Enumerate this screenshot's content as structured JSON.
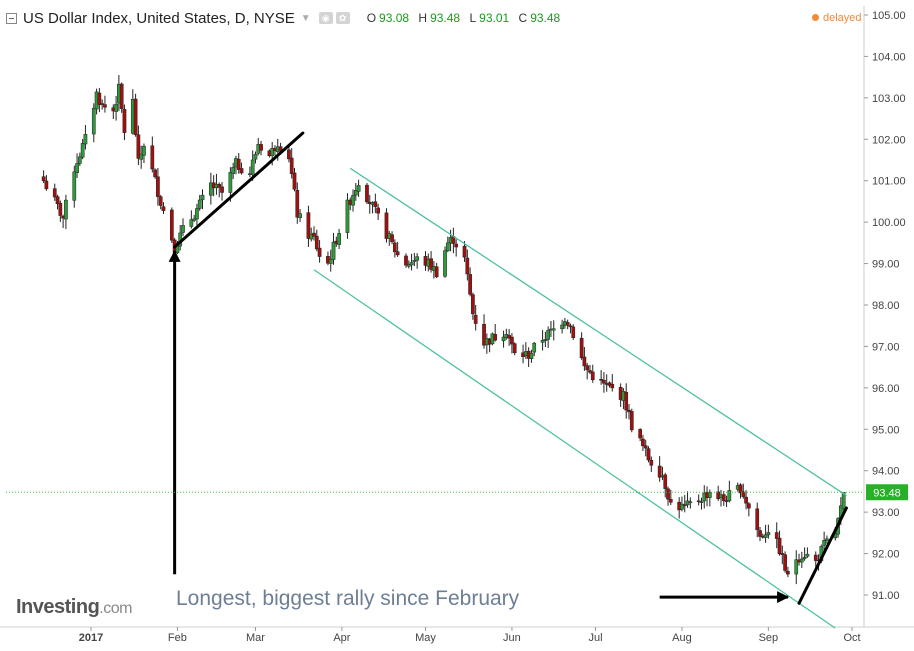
{
  "header": {
    "title": "US Dollar Index, United States, D, NYSE",
    "o_label": "O",
    "o_value": "93.08",
    "h_label": "H",
    "h_value": "93.48",
    "l_label": "L",
    "l_value": "93.01",
    "c_label": "C",
    "c_value": "93.48",
    "delayed": "delayed"
  },
  "logo": {
    "brand": "Investing",
    "suffix": ".com"
  },
  "annotation": "Longest, biggest rally since February",
  "price_marker": "93.48",
  "colors": {
    "up": "#2e9a3a",
    "down": "#a01010",
    "channel": "#4fc0a2",
    "price_line": "#3bbf3b",
    "delayed": "#f08a3a",
    "arrow": "#000000"
  },
  "chart_data": {
    "type": "candlestick",
    "title": "US Dollar Index, United States, D, NYSE",
    "y_ticks": [
      "91.00",
      "92.00",
      "93.00",
      "94.00",
      "95.00",
      "96.00",
      "97.00",
      "98.00",
      "99.00",
      "100.00",
      "101.00",
      "102.00",
      "103.00",
      "104.00",
      "105.00"
    ],
    "ylim": [
      90.2,
      105.3
    ],
    "x_ticks": [
      "2017",
      "Feb",
      "Mar",
      "Apr",
      "May",
      "Jun",
      "Jul",
      "Aug",
      "Sep",
      "Oct"
    ],
    "last_price": 93.48,
    "channel": {
      "upper": [
        [
          "2017-04-04",
          101.3
        ],
        [
          "2017-09-29",
          93.4
        ]
      ],
      "lower": [
        [
          "2017-03-22",
          98.85
        ],
        [
          "2017-09-25",
          90.2
        ]
      ]
    },
    "trendlines": [
      [
        [
          "2017-01-31",
          99.4
        ],
        [
          "2017-03-18",
          102.15
        ]
      ],
      [
        [
          "2017-09-12",
          90.8
        ],
        [
          "2017-09-29",
          93.1
        ]
      ]
    ],
    "arrows": [
      {
        "from": [
          "2017-01-31",
          91.5
        ],
        "to": [
          "2017-01-31",
          99.3
        ]
      },
      {
        "from": [
          "2017-07-24",
          90.95
        ],
        "to": [
          "2017-09-08",
          90.95
        ]
      }
    ],
    "anchors": [
      [
        "2016-12-15",
        101.0
      ],
      [
        "2016-12-19",
        100.5
      ],
      [
        "2016-12-22",
        100.1
      ],
      [
        "2016-12-26",
        101.3
      ],
      [
        "2016-12-30",
        102.0
      ],
      [
        "2017-01-03",
        103.1
      ],
      [
        "2017-01-05",
        102.8
      ],
      [
        "2017-01-09",
        102.7
      ],
      [
        "2017-01-11",
        103.2
      ],
      [
        "2017-01-13",
        102.2
      ],
      [
        "2017-01-16",
        102.9
      ],
      [
        "2017-01-18",
        101.4
      ],
      [
        "2017-01-20",
        101.9
      ],
      [
        "2017-01-24",
        101.0
      ],
      [
        "2017-01-26",
        100.5
      ],
      [
        "2017-01-31",
        99.4
      ],
      [
        "2017-02-03",
        99.8
      ],
      [
        "2017-02-08",
        100.3
      ],
      [
        "2017-02-13",
        100.9
      ],
      [
        "2017-02-17",
        100.7
      ],
      [
        "2017-02-22",
        101.4
      ],
      [
        "2017-02-27",
        101.2
      ],
      [
        "2017-03-02",
        101.9
      ],
      [
        "2017-03-06",
        101.6
      ],
      [
        "2017-03-09",
        101.95
      ],
      [
        "2017-03-13",
        101.6
      ],
      [
        "2017-03-16",
        100.2
      ],
      [
        "2017-03-20",
        99.7
      ],
      [
        "2017-03-22",
        99.6
      ],
      [
        "2017-03-24",
        99.2
      ],
      [
        "2017-03-27",
        99.0
      ],
      [
        "2017-04-03",
        100.4
      ],
      [
        "2017-04-07",
        101.0
      ],
      [
        "2017-04-11",
        100.5
      ],
      [
        "2017-04-14",
        100.1
      ],
      [
        "2017-04-18",
        99.6
      ],
      [
        "2017-04-21",
        99.2
      ],
      [
        "2017-04-24",
        99.0
      ],
      [
        "2017-04-28",
        99.1
      ],
      [
        "2017-05-02",
        99.0
      ],
      [
        "2017-05-05",
        98.8
      ],
      [
        "2017-05-09",
        99.5
      ],
      [
        "2017-05-11",
        99.6
      ],
      [
        "2017-05-15",
        99.1
      ],
      [
        "2017-05-18",
        97.8
      ],
      [
        "2017-05-22",
        97.1
      ],
      [
        "2017-05-25",
        97.2
      ],
      [
        "2017-05-30",
        97.4
      ],
      [
        "2017-06-02",
        96.8
      ],
      [
        "2017-06-07",
        96.8
      ],
      [
        "2017-06-12",
        97.2
      ],
      [
        "2017-06-16",
        97.4
      ],
      [
        "2017-06-20",
        97.7
      ],
      [
        "2017-06-22",
        97.5
      ],
      [
        "2017-06-27",
        96.5
      ],
      [
        "2017-07-03",
        96.1
      ],
      [
        "2017-07-06",
        96.0
      ],
      [
        "2017-07-11",
        95.8
      ],
      [
        "2017-07-14",
        95.1
      ],
      [
        "2017-07-20",
        94.3
      ],
      [
        "2017-07-25",
        93.9
      ],
      [
        "2017-07-28",
        93.2
      ],
      [
        "2017-08-02",
        93.1
      ],
      [
        "2017-08-07",
        93.3
      ],
      [
        "2017-08-11",
        93.5
      ],
      [
        "2017-08-16",
        93.3
      ],
      [
        "2017-08-22",
        93.6
      ],
      [
        "2017-08-25",
        93.1
      ],
      [
        "2017-08-29",
        92.4
      ],
      [
        "2017-09-01",
        92.6
      ],
      [
        "2017-09-05",
        92.1
      ],
      [
        "2017-09-08",
        91.4
      ],
      [
        "2017-09-11",
        91.9
      ],
      [
        "2017-09-14",
        92.0
      ],
      [
        "2017-09-18",
        91.8
      ],
      [
        "2017-09-21",
        92.2
      ],
      [
        "2017-09-25",
        92.5
      ],
      [
        "2017-09-27",
        93.05
      ],
      [
        "2017-09-28",
        93.48
      ]
    ]
  }
}
